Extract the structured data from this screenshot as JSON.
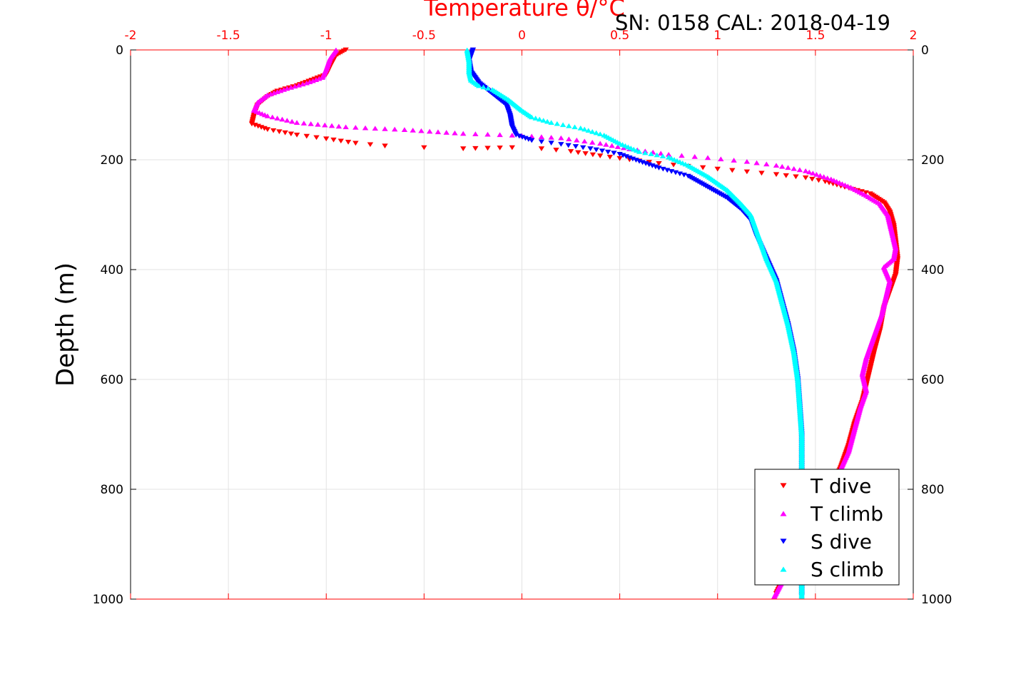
{
  "chart_data": {
    "type": "scatter",
    "title": "Temperature θ/°C",
    "subtitle": "SN: 0158  CAL: 2018-04-19",
    "ylabel": "Depth (m)",
    "xlabel": "",
    "xlim": [
      -2,
      2
    ],
    "ylim": [
      0,
      1000
    ],
    "y_reversed": true,
    "x_ticks": [
      "-2",
      "-1.5",
      "-1",
      "-0.5",
      "0",
      "0.5",
      "1",
      "1.5",
      "2"
    ],
    "x_tick_values": [
      -2,
      -1.5,
      -1,
      -0.5,
      0,
      0.5,
      1,
      1.5,
      2
    ],
    "y_ticks": [
      "0",
      "200",
      "400",
      "600",
      "800",
      "1000"
    ],
    "y_tick_values": [
      0,
      200,
      400,
      600,
      800,
      1000
    ],
    "grid": true,
    "legend_position": "bottom-right",
    "legend": [
      "T dive",
      "T climb",
      "S dive",
      "S climb"
    ],
    "series": [
      {
        "name": "T dive",
        "color": "#ff0000",
        "marker": "triangle-down",
        "points": [
          [
            -0.9,
            0
          ],
          [
            -0.95,
            10
          ],
          [
            -0.98,
            30
          ],
          [
            -1.0,
            45
          ],
          [
            -1.15,
            65
          ],
          [
            -1.25,
            75
          ],
          [
            -1.3,
            85
          ],
          [
            -1.35,
            100
          ],
          [
            -1.37,
            120
          ],
          [
            -1.38,
            135
          ],
          [
            -1.3,
            145
          ],
          [
            -1.15,
            155
          ],
          [
            -1.0,
            162
          ],
          [
            -0.85,
            170
          ],
          [
            -0.7,
            175
          ],
          [
            -0.5,
            178
          ],
          [
            -0.3,
            180
          ],
          [
            -0.05,
            178
          ],
          [
            0.1,
            180
          ],
          [
            0.25,
            185
          ],
          [
            0.4,
            193
          ],
          [
            0.55,
            200
          ],
          [
            0.7,
            207
          ],
          [
            0.85,
            212
          ],
          [
            1.0,
            217
          ],
          [
            1.15,
            222
          ],
          [
            1.3,
            227
          ],
          [
            1.45,
            233
          ],
          [
            1.55,
            240
          ],
          [
            1.65,
            250
          ],
          [
            1.78,
            262
          ],
          [
            1.85,
            278
          ],
          [
            1.88,
            295
          ],
          [
            1.9,
            320
          ],
          [
            1.91,
            350
          ],
          [
            1.92,
            380
          ],
          [
            1.91,
            410
          ],
          [
            1.88,
            440
          ],
          [
            1.85,
            470
          ],
          [
            1.83,
            510
          ],
          [
            1.8,
            550
          ],
          [
            1.78,
            580
          ],
          [
            1.76,
            610
          ],
          [
            1.74,
            640
          ],
          [
            1.7,
            680
          ],
          [
            1.67,
            720
          ],
          [
            1.63,
            760
          ],
          [
            1.58,
            800
          ],
          [
            1.5,
            860
          ],
          [
            1.4,
            920
          ],
          [
            1.3,
            990
          ]
        ]
      },
      {
        "name": "T climb",
        "color": "#ff00ff",
        "marker": "triangle-up",
        "points": [
          [
            -0.95,
            0
          ],
          [
            -0.98,
            15
          ],
          [
            -1.0,
            35
          ],
          [
            -1.02,
            50
          ],
          [
            -1.1,
            60
          ],
          [
            -1.2,
            70
          ],
          [
            -1.3,
            82
          ],
          [
            -1.35,
            95
          ],
          [
            -1.37,
            110
          ],
          [
            -1.3,
            120
          ],
          [
            -1.15,
            132
          ],
          [
            -0.9,
            140
          ],
          [
            -0.6,
            145
          ],
          [
            -0.3,
            152
          ],
          [
            -0.05,
            155
          ],
          [
            0.2,
            160
          ],
          [
            0.4,
            170
          ],
          [
            0.55,
            180
          ],
          [
            0.75,
            190
          ],
          [
            0.95,
            196
          ],
          [
            1.15,
            203
          ],
          [
            1.3,
            210
          ],
          [
            1.45,
            220
          ],
          [
            1.58,
            235
          ],
          [
            1.68,
            250
          ],
          [
            1.76,
            265
          ],
          [
            1.83,
            280
          ],
          [
            1.87,
            300
          ],
          [
            1.89,
            330
          ],
          [
            1.91,
            360
          ],
          [
            1.9,
            380
          ],
          [
            1.85,
            395
          ],
          [
            1.88,
            420
          ],
          [
            1.86,
            450
          ],
          [
            1.84,
            480
          ],
          [
            1.8,
            520
          ],
          [
            1.76,
            560
          ],
          [
            1.74,
            590
          ],
          [
            1.76,
            620
          ],
          [
            1.73,
            650
          ],
          [
            1.7,
            690
          ],
          [
            1.67,
            730
          ],
          [
            1.62,
            770
          ],
          [
            1.56,
            820
          ],
          [
            1.46,
            880
          ],
          [
            1.37,
            940
          ],
          [
            1.29,
            995
          ]
        ]
      },
      {
        "name": "S dive",
        "color": "#0000ff",
        "marker": "triangle-down",
        "points": [
          [
            -0.25,
            0
          ],
          [
            -0.27,
            20
          ],
          [
            -0.26,
            40
          ],
          [
            -0.22,
            60
          ],
          [
            -0.15,
            80
          ],
          [
            -0.08,
            100
          ],
          [
            -0.06,
            120
          ],
          [
            -0.05,
            140
          ],
          [
            -0.03,
            155
          ],
          [
            0.05,
            165
          ],
          [
            0.2,
            172
          ],
          [
            0.35,
            180
          ],
          [
            0.5,
            190
          ],
          [
            0.6,
            203
          ],
          [
            0.7,
            215
          ],
          [
            0.85,
            230
          ],
          [
            0.95,
            250
          ],
          [
            1.05,
            270
          ],
          [
            1.12,
            290
          ],
          [
            1.17,
            310
          ],
          [
            1.2,
            340
          ],
          [
            1.25,
            380
          ],
          [
            1.3,
            420
          ],
          [
            1.33,
            460
          ],
          [
            1.36,
            500
          ],
          [
            1.39,
            550
          ],
          [
            1.41,
            600
          ],
          [
            1.42,
            650
          ],
          [
            1.43,
            700
          ],
          [
            1.43,
            750
          ],
          [
            1.43,
            800
          ],
          [
            1.43,
            850
          ],
          [
            1.43,
            900
          ],
          [
            1.43,
            950
          ],
          [
            1.43,
            995
          ]
        ]
      },
      {
        "name": "S climb",
        "color": "#00ffff",
        "marker": "triangle-up",
        "points": [
          [
            -0.28,
            0
          ],
          [
            -0.27,
            20
          ],
          [
            -0.27,
            40
          ],
          [
            -0.26,
            55
          ],
          [
            -0.22,
            65
          ],
          [
            -0.15,
            72
          ],
          [
            -0.07,
            90
          ],
          [
            0.0,
            110
          ],
          [
            0.05,
            122
          ],
          [
            0.15,
            132
          ],
          [
            0.3,
            142
          ],
          [
            0.42,
            155
          ],
          [
            0.5,
            170
          ],
          [
            0.6,
            185
          ],
          [
            0.75,
            195
          ],
          [
            0.85,
            210
          ],
          [
            0.95,
            230
          ],
          [
            1.05,
            255
          ],
          [
            1.12,
            280
          ],
          [
            1.17,
            300
          ],
          [
            1.2,
            330
          ],
          [
            1.25,
            380
          ],
          [
            1.3,
            420
          ],
          [
            1.33,
            460
          ],
          [
            1.36,
            500
          ],
          [
            1.39,
            550
          ],
          [
            1.41,
            600
          ],
          [
            1.42,
            650
          ],
          [
            1.43,
            700
          ],
          [
            1.43,
            750
          ],
          [
            1.43,
            800
          ],
          [
            1.43,
            850
          ],
          [
            1.43,
            900
          ],
          [
            1.43,
            950
          ],
          [
            1.43,
            995
          ]
        ]
      }
    ]
  }
}
